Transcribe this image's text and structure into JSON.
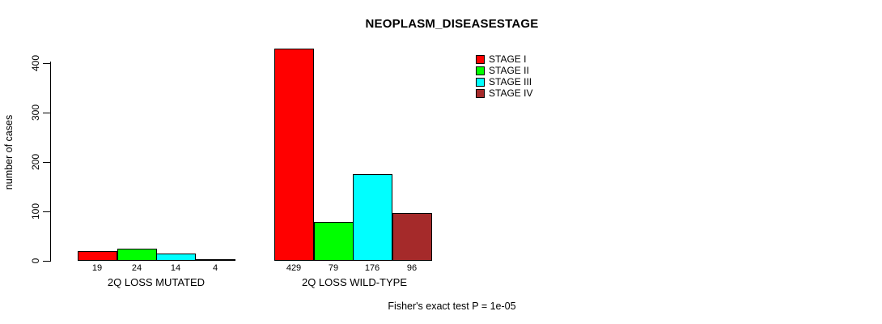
{
  "chart_data": {
    "type": "bar",
    "title": "NEOPLASM_DISEASESTAGE",
    "ylabel": "number of cases",
    "xlabel": "",
    "ylim": [
      0,
      400
    ],
    "yticks": [
      0,
      100,
      200,
      300,
      400
    ],
    "grid": false,
    "legend_position": "top-right",
    "groups": [
      "2Q LOSS MUTATED",
      "2Q LOSS WILD-TYPE"
    ],
    "series": [
      {
        "name": "STAGE I",
        "color": "#ff0000",
        "values": [
          19,
          429
        ]
      },
      {
        "name": "STAGE II",
        "color": "#00ff00",
        "values": [
          24,
          79
        ]
      },
      {
        "name": "STAGE III",
        "color": "#00ffff",
        "values": [
          14,
          176
        ]
      },
      {
        "name": "STAGE IV",
        "color": "#a52a2a",
        "values": [
          4,
          96
        ]
      }
    ],
    "bar_value_labels": [
      [
        19,
        24,
        14,
        4
      ],
      [
        429,
        79,
        176,
        96
      ]
    ],
    "footnote": "Fisher's exact test P = 1e-05"
  }
}
